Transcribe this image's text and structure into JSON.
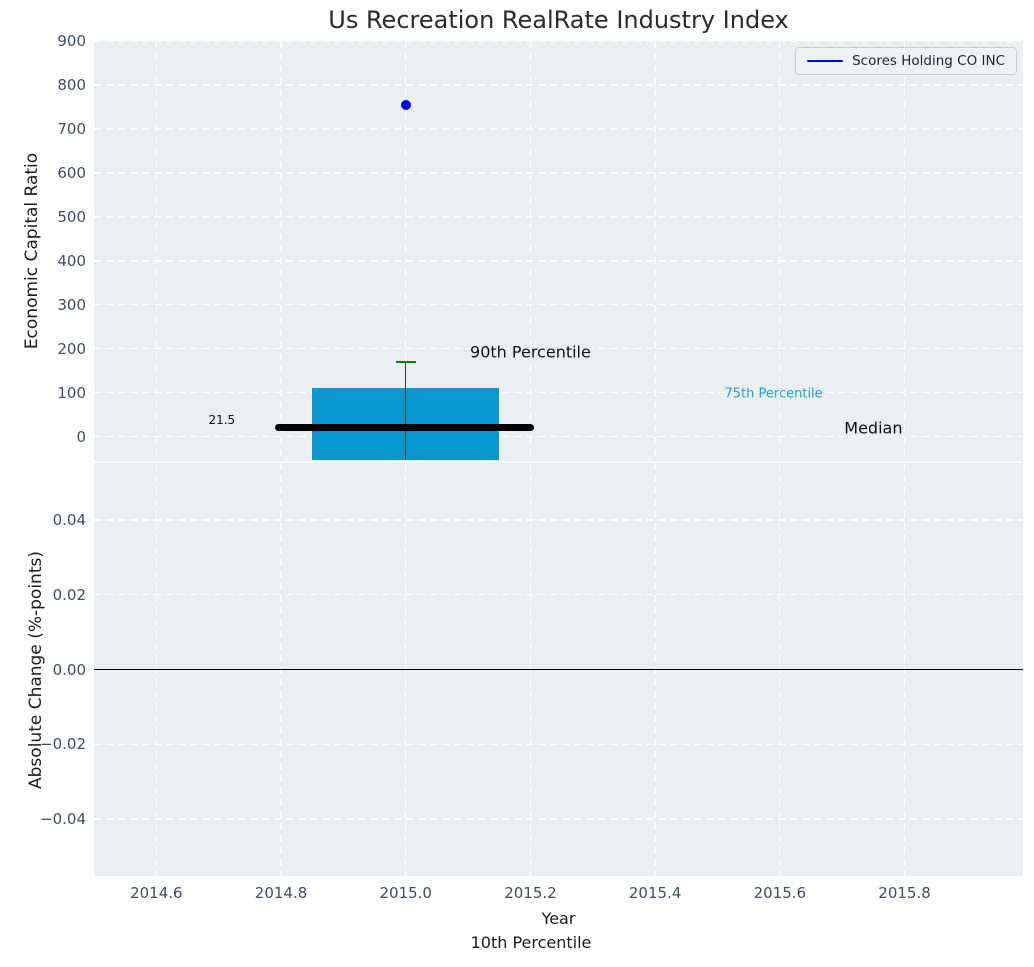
{
  "chart_data": {
    "type": "composite",
    "subtype": "box-percentile-plot",
    "title": "Us Recreation RealRate Industry Index",
    "legend": {
      "position": "top-right",
      "entries": [
        {
          "label": "Scores Holding CO INC",
          "marker": "line",
          "color": "#0000ee"
        }
      ]
    },
    "x_axis": {
      "label": "Year",
      "sublabel": "10th Percentile",
      "lim": [
        2014.5,
        2015.99
      ],
      "ticks": [
        {
          "v": 2014.6,
          "label": "2014.6"
        },
        {
          "v": 2014.8,
          "label": "2014.8"
        },
        {
          "v": 2015.0,
          "label": "2015.0"
        },
        {
          "v": 2015.2,
          "label": "2015.2"
        },
        {
          "v": 2015.4,
          "label": "2015.4"
        },
        {
          "v": 2015.6,
          "label": "2015.6"
        },
        {
          "v": 2015.8,
          "label": "2015.8"
        }
      ]
    },
    "panels": [
      {
        "id": "economic-capital-ratio",
        "ylabel": "Economic Capital Ratio",
        "ylim": [
          -54,
          900
        ],
        "yticks": [
          {
            "v": 0,
            "label": "0"
          },
          {
            "v": 100,
            "label": "100"
          },
          {
            "v": 200,
            "label": "200"
          },
          {
            "v": 300,
            "label": "300"
          },
          {
            "v": 400,
            "label": "400"
          },
          {
            "v": 500,
            "label": "500"
          },
          {
            "v": 600,
            "label": "600"
          },
          {
            "v": 700,
            "label": "700"
          },
          {
            "v": 800,
            "label": "800"
          },
          {
            "v": 900,
            "label": "900"
          }
        ],
        "series": [
          {
            "name": "Scores Holding CO INC",
            "type": "scatter",
            "color": "#0000ee",
            "points": [
              {
                "x": 2015.0,
                "y": 755
              }
            ]
          }
        ],
        "box": {
          "x": 2015.0,
          "bar_x0": 2014.85,
          "bar_x1": 2015.15,
          "bar_top": 110,
          "bar_bottom": null,
          "bar_clipped_at_axis_bottom": true,
          "bar_color": "#0a97ce",
          "whisker_x": 2015.0,
          "whisker_top": 170,
          "whisker_color": "#3a3a3a",
          "p90": 170,
          "p90_cap_color": "#008000",
          "p90_cap_halfwidth": 0.016,
          "p75": 110,
          "median": 21.5,
          "median_line": {
            "x0": 2014.79,
            "x1": 2015.205,
            "value": 21.5,
            "color": "#000000",
            "thickness": 7
          }
        },
        "annotations": [
          {
            "text": "21.5",
            "x": 2014.705,
            "y": 38,
            "color": "#111111",
            "size": 12
          },
          {
            "text": "90th Percentile",
            "x": 2015.2,
            "y": 193,
            "color": "#111111",
            "size": 16
          },
          {
            "text": "75th Percentile",
            "x": 2015.59,
            "y": 97,
            "color": "#1f9fd4",
            "size": 13
          },
          {
            "text": "Median",
            "x": 2015.75,
            "y": 20,
            "color": "#111111",
            "size": 16
          }
        ]
      },
      {
        "id": "absolute-change",
        "ylabel": "Absolute Change (%-points)",
        "ylim": [
          -0.0552,
          0.0552
        ],
        "yticks": [
          {
            "v": 0.04,
            "label": "0.04"
          },
          {
            "v": 0.02,
            "label": "0.02"
          },
          {
            "v": 0.0,
            "label": "0.00"
          },
          {
            "v": -0.02,
            "label": "−0.02"
          },
          {
            "v": -0.04,
            "label": "−0.04"
          }
        ],
        "zero_line": {
          "value": 0.0,
          "color": "#000000"
        },
        "series": []
      }
    ],
    "style": {
      "plot_bg": "#e9eef0",
      "grid_color": "#ffffff",
      "grid_dashed": true,
      "tick_color": "#3d4c63",
      "title_color": "#2b2b2b"
    }
  }
}
